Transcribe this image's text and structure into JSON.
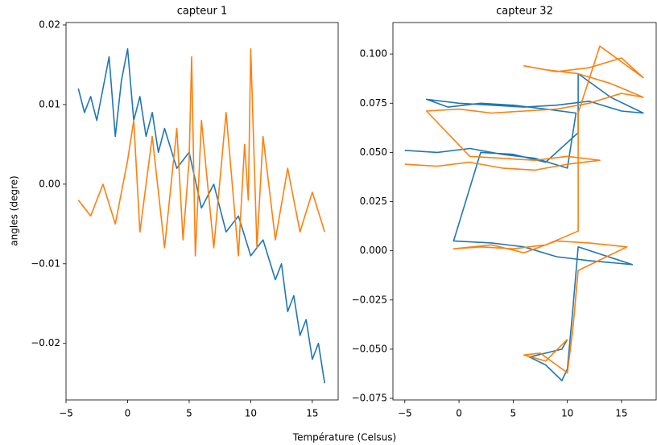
{
  "chart_data": [
    {
      "type": "line",
      "title": "capteur 1",
      "x_label": "Température (Celsus)",
      "y_label": "angles (degre)",
      "xlim": [
        -5.0,
        17.1
      ],
      "ylim": [
        -0.0271,
        0.0203
      ],
      "xticks": [
        {
          "value": -5,
          "label": "−5"
        },
        0,
        5,
        10,
        15
      ],
      "yticks": [
        {
          "value": -0.02,
          "label": "−0.02"
        },
        {
          "value": -0.01,
          "label": "−0.01"
        },
        {
          "value": 0,
          "label": "0.00"
        },
        {
          "value": 0.01,
          "label": "0.01"
        },
        {
          "value": 0.02,
          "label": "0.02"
        }
      ],
      "series": [
        {
          "color": "#1f77b4",
          "x": [
            -4,
            -3.5,
            -3,
            -2.5,
            -2,
            -1.5,
            -1,
            -0.5,
            0,
            0.5,
            1,
            1.5,
            2,
            2.5,
            3,
            4,
            5,
            6,
            7,
            8,
            9,
            10,
            11,
            12,
            12.5,
            13,
            13.5,
            14,
            14.5,
            15,
            15.5,
            16
          ],
          "values": [
            0.012,
            0.009,
            0.011,
            0.008,
            0.012,
            0.016,
            0.006,
            0.013,
            0.017,
            0.008,
            0.011,
            0.006,
            0.009,
            0.004,
            0.007,
            0.002,
            0.004,
            -0.003,
            0.0,
            -0.006,
            -0.004,
            -0.009,
            -0.007,
            -0.012,
            -0.01,
            -0.016,
            -0.014,
            -0.019,
            -0.017,
            -0.022,
            -0.02,
            -0.025
          ]
        },
        {
          "color": "#ff7f0e",
          "x": [
            -4,
            -3,
            -2,
            -1,
            0,
            0.5,
            1,
            2,
            3,
            4,
            4.5,
            5,
            5.2,
            5.5,
            6,
            7,
            8,
            9,
            9.5,
            9.8,
            10,
            10.5,
            11,
            12,
            13,
            14,
            15,
            16
          ],
          "values": [
            -0.002,
            -0.004,
            0.0,
            -0.005,
            0.003,
            0.008,
            -0.006,
            0.006,
            -0.008,
            0.007,
            -0.007,
            0.003,
            0.016,
            -0.009,
            0.008,
            -0.008,
            0.009,
            -0.009,
            0.005,
            -0.002,
            0.017,
            -0.008,
            0.006,
            -0.007,
            0.002,
            -0.006,
            -0.001,
            -0.006
          ]
        }
      ]
    },
    {
      "type": "line",
      "title": "capteur 32",
      "xlim": [
        -6.1,
        18.2
      ],
      "ylim": [
        -0.0758,
        0.116
      ],
      "xticks": [
        {
          "value": -5,
          "label": "−5"
        },
        0,
        5,
        10,
        15
      ],
      "yticks": [
        {
          "value": -0.075,
          "label": "−0.075"
        },
        {
          "value": -0.05,
          "label": "−0.050"
        },
        {
          "value": -0.025,
          "label": "−0.025"
        },
        {
          "value": 0,
          "label": "0.000"
        },
        {
          "value": 0.025,
          "label": "0.025"
        },
        {
          "value": 0.05,
          "label": "0.050"
        },
        {
          "value": 0.075,
          "label": "0.075"
        },
        {
          "value": 0.1,
          "label": "0.100"
        }
      ],
      "series": [
        {
          "color": "#1f77b4",
          "x": [
            -5,
            -2,
            1,
            4,
            7,
            10,
            10.8,
            8,
            5,
            2,
            -1,
            -3,
            0,
            3,
            6,
            9,
            12,
            15,
            17,
            14,
            11,
            11,
            8,
            5,
            2,
            -0.5,
            3,
            6,
            9,
            12,
            14,
            16,
            11,
            10.5,
            10,
            9.5,
            8,
            6.5,
            9.5,
            10
          ],
          "values": [
            0.051,
            0.05,
            0.052,
            0.049,
            0.047,
            0.042,
            0.07,
            0.072,
            0.074,
            0.075,
            0.073,
            0.077,
            0.075,
            0.074,
            0.073,
            0.074,
            0.076,
            0.071,
            0.07,
            0.078,
            0.09,
            0.06,
            0.045,
            0.049,
            0.05,
            0.005,
            0.004,
            0.002,
            -0.003,
            -0.005,
            -0.006,
            -0.007,
            0.002,
            -0.03,
            -0.06,
            -0.066,
            -0.058,
            -0.054,
            -0.05,
            -0.045
          ]
        },
        {
          "color": "#ff7f0e",
          "x": [
            -5,
            -2,
            1,
            4,
            7,
            10,
            13,
            10,
            7,
            4,
            1,
            -3,
            0,
            3,
            6,
            9,
            12,
            15,
            17,
            14,
            11,
            8,
            6,
            9,
            12,
            15,
            17,
            13,
            11,
            11,
            8,
            5,
            2,
            -0.5,
            3,
            6,
            9,
            12,
            15.5,
            11,
            10.5,
            10,
            9,
            7.5,
            6,
            8,
            10
          ],
          "values": [
            0.044,
            0.043,
            0.045,
            0.042,
            0.041,
            0.044,
            0.046,
            0.048,
            0.046,
            0.047,
            0.048,
            0.071,
            0.072,
            0.07,
            0.071,
            0.072,
            0.075,
            0.08,
            0.078,
            0.085,
            0.09,
            0.092,
            0.094,
            0.091,
            0.093,
            0.098,
            0.088,
            0.104,
            0.07,
            0.01,
            0.003,
            0.001,
            0.002,
            0.001,
            0.003,
            -0.001,
            0.005,
            0.004,
            0.002,
            -0.01,
            -0.04,
            -0.062,
            -0.058,
            -0.052,
            -0.053,
            -0.056,
            -0.045
          ]
        }
      ]
    }
  ]
}
